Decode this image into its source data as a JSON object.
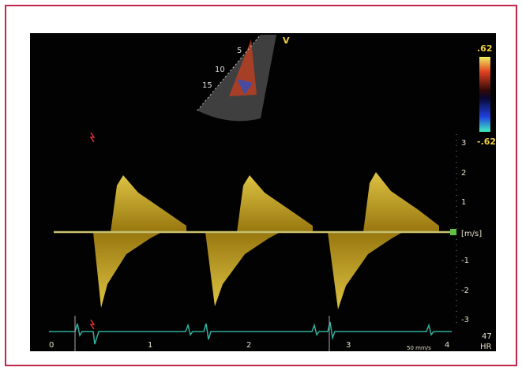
{
  "sector": {
    "label": "V",
    "depths": [
      "5",
      "10",
      "15"
    ]
  },
  "color_scale": {
    "top": ".62",
    "bottom": "-.62"
  },
  "velocity_scale": {
    "labels": [
      "3",
      "2",
      "1",
      "-1",
      "-2",
      "-3"
    ],
    "unit": "[m/s]"
  },
  "time_scale": {
    "labels": [
      "0",
      "1",
      "2",
      "3",
      "4"
    ],
    "speed": "50 mm/s"
  },
  "heart_rate": {
    "value": "47",
    "label": "HR"
  }
}
